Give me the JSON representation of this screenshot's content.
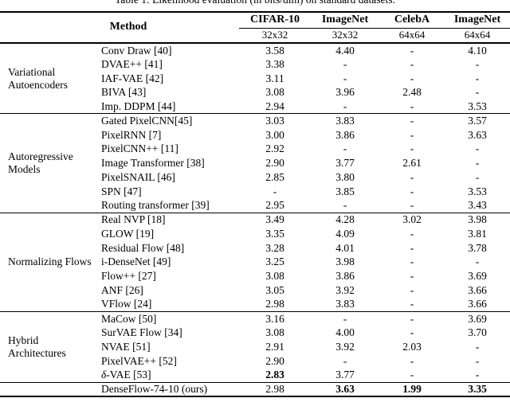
{
  "caption": "Table 1: Likelihood evaluation (in bits/dim) on standard datasets.",
  "table": {
    "header": {
      "method_label": "Method",
      "datasets": [
        "CIFAR-10",
        "ImageNet",
        "CelebA",
        "ImageNet"
      ],
      "resolutions": [
        "32x32",
        "32x32",
        "64x64",
        "64x64"
      ]
    },
    "sections": [
      {
        "group": "Variational Autoencoders",
        "rows": [
          {
            "method": "Conv Draw [40]",
            "values": [
              "3.58",
              "4.40",
              "-",
              "4.10"
            ]
          },
          {
            "method": "DVAE++ [41]",
            "values": [
              "3.38",
              "-",
              "-",
              "-"
            ]
          },
          {
            "method": "IAF-VAE [42]",
            "values": [
              "3.11",
              "-",
              "-",
              "-"
            ]
          },
          {
            "method": "BIVA [43]",
            "values": [
              "3.08",
              "3.96",
              "2.48",
              "-"
            ]
          },
          {
            "method": "Imp. DDPM [44]",
            "values": [
              "2.94",
              "-",
              "-",
              "3.53"
            ]
          }
        ]
      },
      {
        "group": "Autoregressive Models",
        "rows": [
          {
            "method": "Gated PixelCNN[45]",
            "values": [
              "3.03",
              "3.83",
              "-",
              "3.57"
            ]
          },
          {
            "method": "PixelRNN [7]",
            "values": [
              "3.00",
              "3.86",
              "-",
              "3.63"
            ]
          },
          {
            "method": "PixelCNN++ [11]",
            "values": [
              "2.92",
              "-",
              "-",
              "-"
            ]
          },
          {
            "method": "Image Transformer [38]",
            "values": [
              "2.90",
              "3.77",
              "2.61",
              "-"
            ]
          },
          {
            "method": "PixelSNAIL [46]",
            "values": [
              "2.85",
              "3.80",
              "-",
              "-"
            ]
          },
          {
            "method": "SPN [47]",
            "values": [
              "-",
              "3.85",
              "-",
              "3.53"
            ]
          },
          {
            "method": "Routing transformer [39]",
            "values": [
              "2.95",
              "-",
              "-",
              "3.43"
            ]
          }
        ]
      },
      {
        "group": "Normalizing Flows",
        "rows": [
          {
            "method": "Real NVP [18]",
            "values": [
              "3.49",
              "4.28",
              "3.02",
              "3.98"
            ]
          },
          {
            "method": "GLOW [19]",
            "values": [
              "3.35",
              "4.09",
              "-",
              "3.81"
            ]
          },
          {
            "method": "Residual Flow [48]",
            "values": [
              "3.28",
              "4.01",
              "-",
              "3.78"
            ]
          },
          {
            "method": "i-DenseNet [49]",
            "values": [
              "3.25",
              "3.98",
              "-",
              "-"
            ]
          },
          {
            "method": "Flow++ [27]",
            "values": [
              "3.08",
              "3.86",
              "-",
              "3.69"
            ]
          },
          {
            "method": "ANF [26]",
            "values": [
              "3.05",
              "3.92",
              "-",
              "3.66"
            ]
          },
          {
            "method": "VFlow [24]",
            "values": [
              "2.98",
              "3.83",
              "-",
              "3.66"
            ]
          }
        ]
      },
      {
        "group": "Hybrid Architectures",
        "rows": [
          {
            "method": "MaCow [50]",
            "values": [
              "3.16",
              "-",
              "-",
              "3.69"
            ]
          },
          {
            "method": "SurVAE Flow [34]",
            "values": [
              "3.08",
              "4.00",
              "-",
              "3.70"
            ]
          },
          {
            "method": "NVAE [51]",
            "values": [
              "2.91",
              "3.92",
              "2.03",
              "-"
            ]
          },
          {
            "method": "PixelVAE++ [52]",
            "values": [
              "2.90",
              "-",
              "-",
              "-"
            ]
          },
          {
            "method": "δ-VAE [53]",
            "values": [
              "2.83",
              "3.77",
              "-",
              "-"
            ]
          }
        ]
      },
      {
        "group": "",
        "rows": [
          {
            "method": "DenseFlow-74-10 (ours)",
            "values": [
              "2.98",
              "3.63",
              "1.99",
              "3.35"
            ]
          }
        ]
      }
    ]
  }
}
